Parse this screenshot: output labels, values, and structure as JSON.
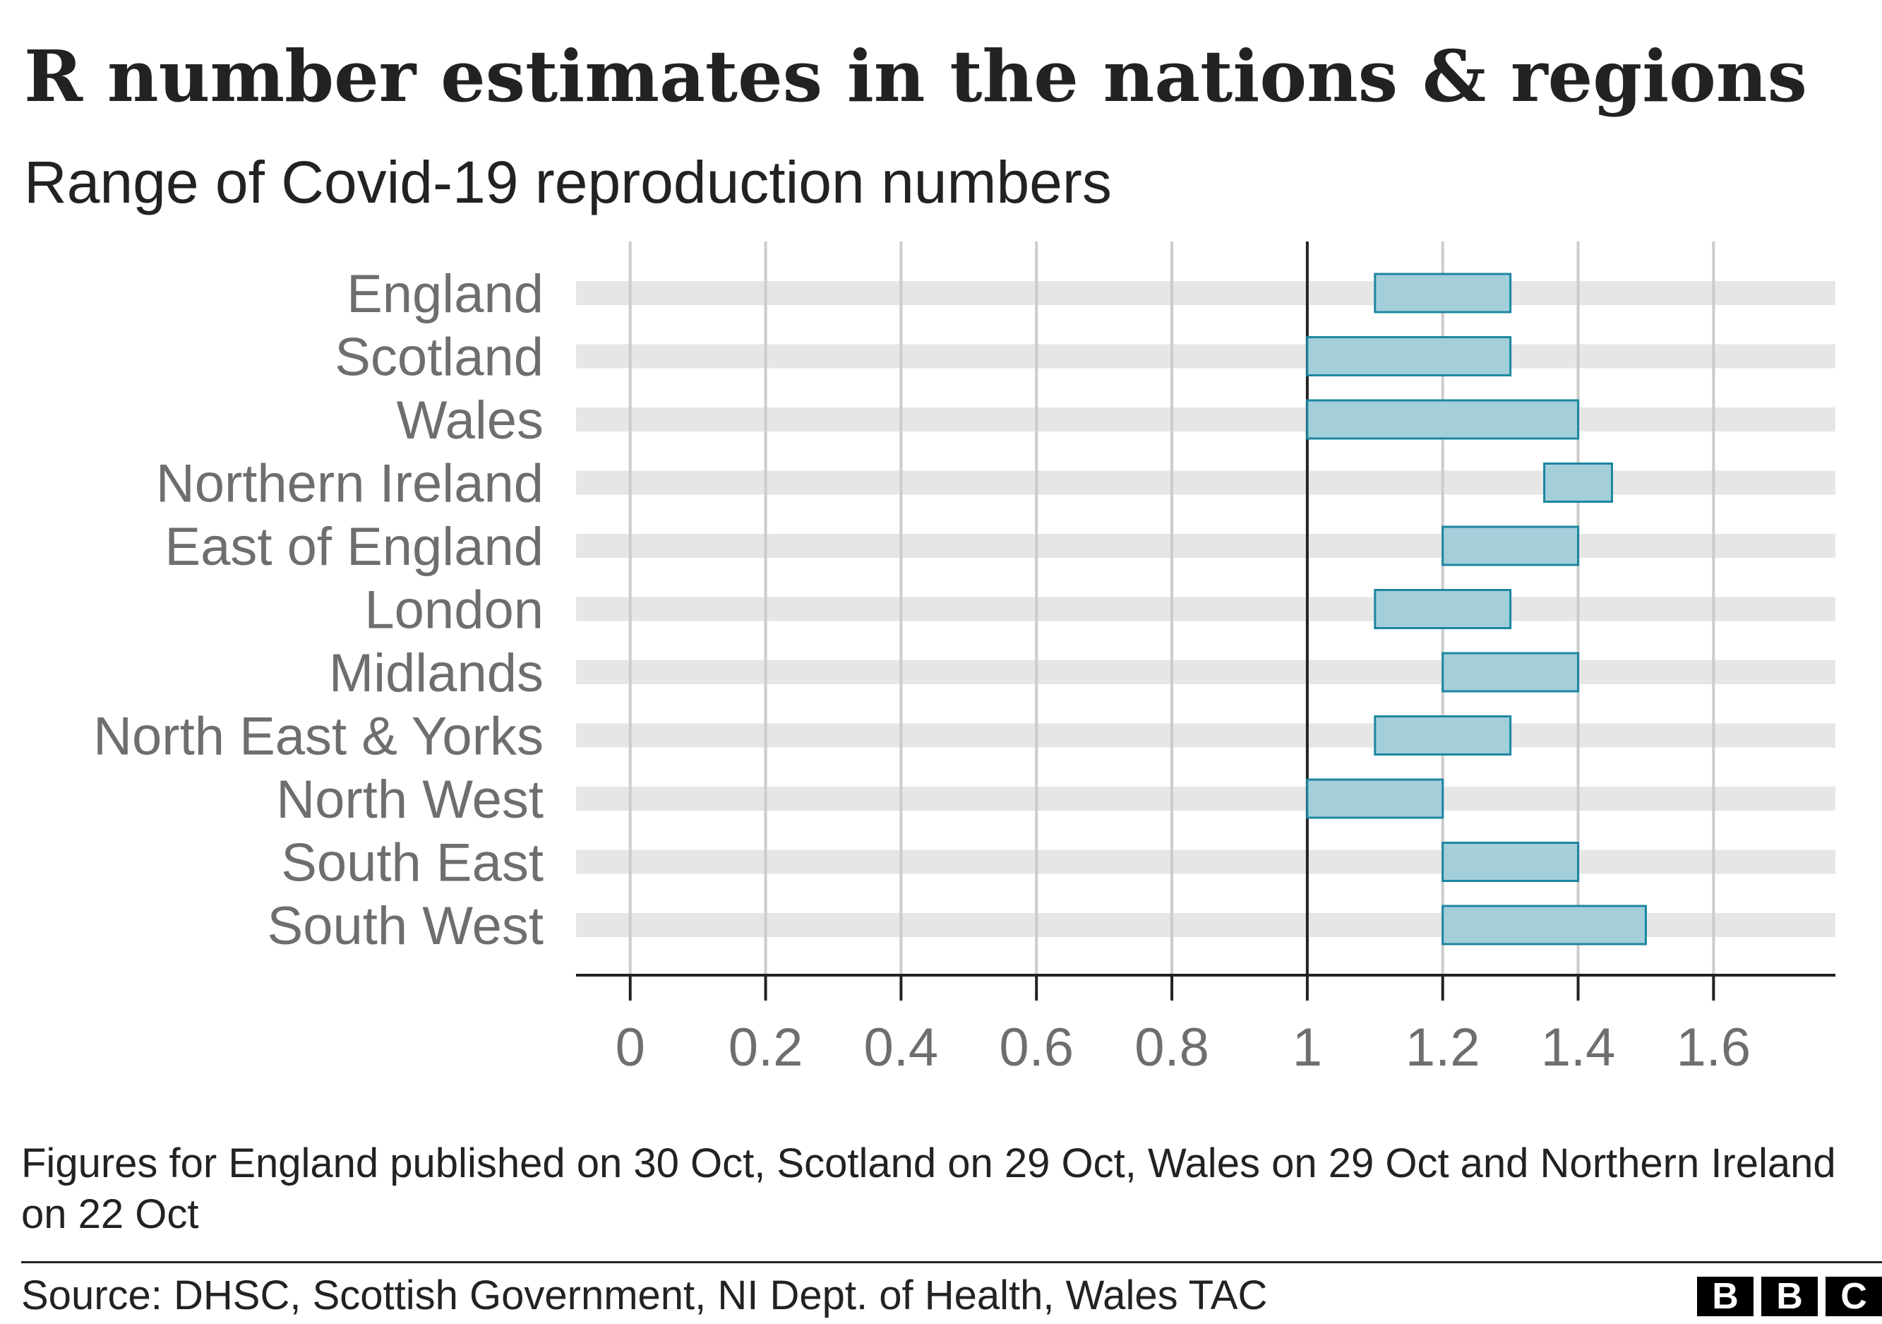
{
  "header": {
    "title": "R number estimates in the nations & regions",
    "subtitle": "Range of Covid-19 reproduction numbers"
  },
  "chart_data": {
    "type": "bar",
    "orientation": "horizontal-range",
    "categories": [
      "England",
      "Scotland",
      "Wales",
      "Northern Ireland",
      "East of England",
      "London",
      "Midlands",
      "North East & Yorks",
      "North West",
      "South East",
      "South West"
    ],
    "ranges": [
      [
        1.1,
        1.3
      ],
      [
        1.0,
        1.3
      ],
      [
        1.0,
        1.4
      ],
      [
        1.35,
        1.45
      ],
      [
        1.2,
        1.4
      ],
      [
        1.1,
        1.3
      ],
      [
        1.2,
        1.4
      ],
      [
        1.1,
        1.3
      ],
      [
        1.0,
        1.2
      ],
      [
        1.2,
        1.4
      ],
      [
        1.2,
        1.5
      ]
    ],
    "xticks": [
      0,
      0.2,
      0.4,
      0.6,
      0.8,
      1,
      1.2,
      1.4,
      1.6
    ],
    "xtick_labels": [
      "0",
      "0.2",
      "0.4",
      "0.6",
      "0.8",
      "1",
      "1.2",
      "1.4",
      "1.6"
    ],
    "xlim": [
      -0.08,
      1.78
    ],
    "reference_line": 1,
    "grid": true,
    "colors": {
      "bar_fill": "#a3ceda",
      "bar_stroke": "#1c87a0",
      "row_band": "#e6e6e6",
      "gridline": "#cccccc",
      "reference_line": "#222222",
      "category_label": "#6e6e6e",
      "tick_label": "#6e6e6e"
    }
  },
  "footer": {
    "note": "Figures for England published on 30 Oct, Scotland on 29 Oct, Wales on 29 Oct and Northern Ireland on 22 Oct",
    "source": "Source: DHSC, Scottish Government, NI Dept. of Health, Wales TAC",
    "logo_letters": [
      "B",
      "B",
      "C"
    ]
  }
}
